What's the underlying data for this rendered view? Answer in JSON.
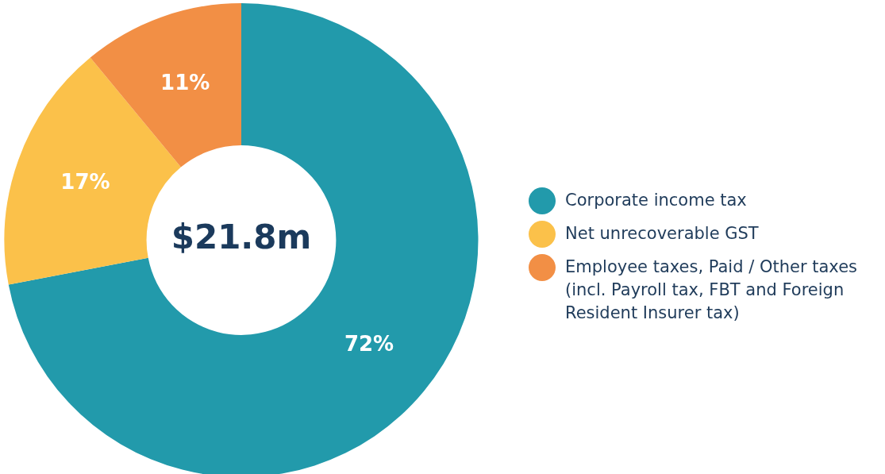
{
  "chart_data": {
    "type": "donut",
    "categories": [
      "Corporate income tax",
      "Net unrecoverable GST",
      "Employee taxes, Paid / Other taxes (incl. Payroll tax, FBT and Foreign Resident Insurer tax)"
    ],
    "values": [
      72,
      17,
      11
    ],
    "colors": [
      "#229aab",
      "#fbc14a",
      "#f28f45"
    ],
    "value_labels": [
      "72%",
      "17%",
      "11%"
    ],
    "legend": "right",
    "annotations": [
      "$21.8m"
    ]
  }
}
